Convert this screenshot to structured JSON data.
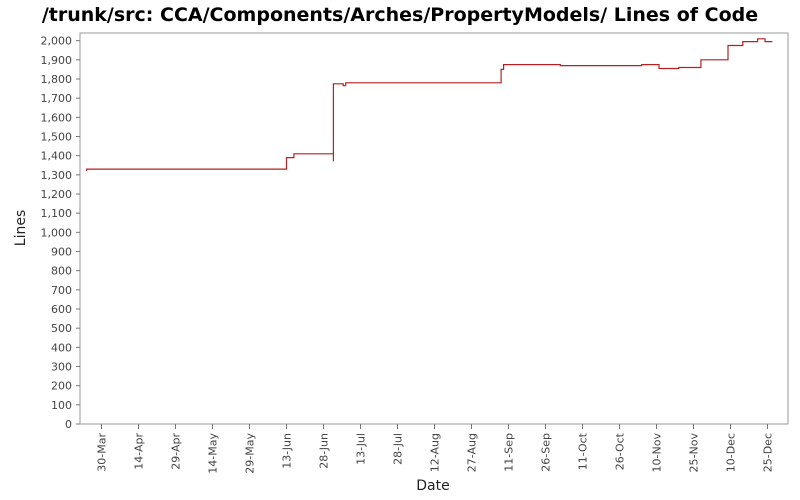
{
  "chart_data": {
    "type": "line",
    "title": "/trunk/src: CCA/Components/Arches/PropertyModels/ Lines of Code",
    "xlabel": "Date",
    "ylabel": "Lines",
    "x_tick_labels": [
      "30-Mar",
      "14-Apr",
      "29-Apr",
      "14-May",
      "29-May",
      "13-Jun",
      "28-Jun",
      "13-Jul",
      "28-Jul",
      "12-Aug",
      "27-Aug",
      "11-Sep",
      "26-Sep",
      "11-Oct",
      "26-Oct",
      "10-Nov",
      "25-Nov",
      "10-Dec",
      "25-Dec"
    ],
    "y_ticks": [
      0,
      100,
      200,
      300,
      400,
      500,
      600,
      700,
      800,
      900,
      1000,
      1100,
      1200,
      1300,
      1400,
      1500,
      1600,
      1700,
      1800,
      1900,
      2000
    ],
    "y_tick_labels": [
      "0",
      "100",
      "200",
      "300",
      "400",
      "500",
      "600",
      "700",
      "800",
      "900",
      "1,000",
      "1,100",
      "1,200",
      "1,300",
      "1,400",
      "1,500",
      "1,600",
      "1,700",
      "1,800",
      "1,900",
      "2,000"
    ],
    "ylim": [
      0,
      2040
    ],
    "grid": false,
    "line_color": "#b22222",
    "series": [
      {
        "x": [
          "24-Mar",
          "24-Mar",
          "13-Jun",
          "13-Jun",
          "16-Jun",
          "16-Jun",
          "2-Jul",
          "2-Jul",
          "2-Jul",
          "2-Jul",
          "6-Jul",
          "6-Jul",
          "7-Jul",
          "7-Jul",
          "8-Sep",
          "8-Sep",
          "9-Sep",
          "9-Sep",
          "2-Oct",
          "2-Oct",
          "4-Nov",
          "4-Nov",
          "11-Nov",
          "11-Nov",
          "19-Nov",
          "19-Nov",
          "28-Nov",
          "28-Nov",
          "9-Dec",
          "9-Dec",
          "15-Dec",
          "15-Dec",
          "21-Dec",
          "21-Dec",
          "24-Dec",
          "24-Dec",
          "27-Dec"
        ],
        "values": [
          1320,
          1330,
          1330,
          1390,
          1390,
          1410,
          1410,
          1370,
          1370,
          1775,
          1775,
          1765,
          1765,
          1780,
          1780,
          1850,
          1850,
          1875,
          1875,
          1870,
          1870,
          1875,
          1875,
          1855,
          1855,
          1860,
          1860,
          1900,
          1900,
          1975,
          1975,
          1995,
          1995,
          2010,
          2010,
          1995,
          1995
        ]
      }
    ]
  }
}
